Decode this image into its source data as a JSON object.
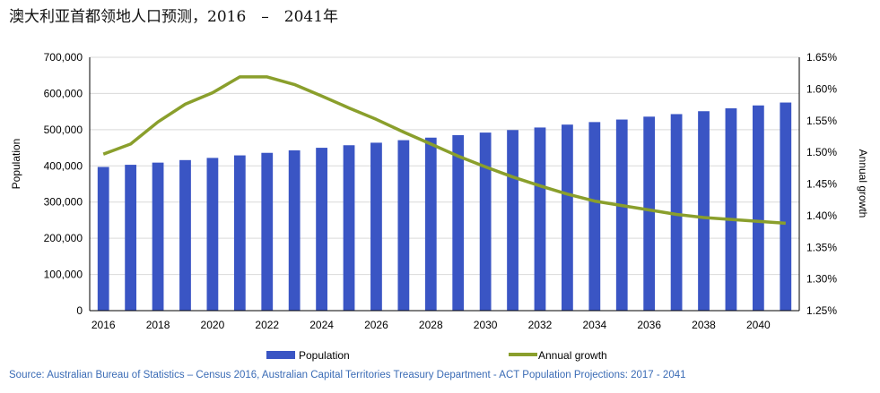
{
  "title": "澳大利亚首都领地人口预测，2016　–　2041年",
  "source": "Source: Australian Bureau of Statistics – Census 2016, Australian Capital Territories  Treasury Department  - ACT Population Projections: 2017 - 2041",
  "colors": {
    "bar": "#3a55c4",
    "line": "#8a9f2c",
    "grid": "#d9d9d9",
    "source_text": "#3a6bb5"
  },
  "chart_data": {
    "type": "bar",
    "title": "澳大利亚首都领地人口预测，2016　–　2041年",
    "xlabel": "",
    "ylabel": "Population",
    "y2label": "Annual growth",
    "ylim": [
      0,
      700000
    ],
    "y2lim": [
      0.0125,
      0.0165
    ],
    "x_tick_labels": [
      "2016",
      "2018",
      "2020",
      "2022",
      "2024",
      "2026",
      "2028",
      "2030",
      "2032",
      "2034",
      "2036",
      "2038",
      "2040"
    ],
    "y_tick_labels": [
      "0",
      "100,000",
      "200,000",
      "300,000",
      "400,000",
      "500,000",
      "600,000",
      "700,000"
    ],
    "y2_tick_labels": [
      "1.25%",
      "1.30%",
      "1.35%",
      "1.40%",
      "1.45%",
      "1.50%",
      "1.55%",
      "1.60%",
      "1.65%"
    ],
    "legend": {
      "position": "bottom"
    },
    "grid": true,
    "x": [
      2016,
      2017,
      2018,
      2019,
      2020,
      2021,
      2022,
      2023,
      2024,
      2025,
      2026,
      2027,
      2028,
      2029,
      2030,
      2031,
      2032,
      2033,
      2034,
      2035,
      2036,
      2037,
      2038,
      2039,
      2040,
      2041
    ],
    "series": [
      {
        "name": "Population",
        "type": "bar",
        "axis": "left",
        "values": [
          397000,
          403000,
          409000,
          416000,
          422000,
          429000,
          436000,
          443000,
          450000,
          457000,
          464000,
          471000,
          478000,
          485000,
          492000,
          499000,
          506000,
          514000,
          521000,
          528000,
          536000,
          543000,
          551000,
          559000,
          567000,
          575000
        ]
      },
      {
        "name": "Annual growth",
        "type": "line",
        "axis": "right",
        "values": [
          0.01497,
          0.01513,
          0.01548,
          0.01576,
          0.01594,
          0.01619,
          0.01619,
          0.01607,
          0.01589,
          0.0157,
          0.01552,
          0.01532,
          0.01513,
          0.01494,
          0.01477,
          0.01461,
          0.01447,
          0.01434,
          0.01423,
          0.01416,
          0.01409,
          0.01402,
          0.01397,
          0.01394,
          0.01391,
          0.01388
        ]
      }
    ]
  }
}
